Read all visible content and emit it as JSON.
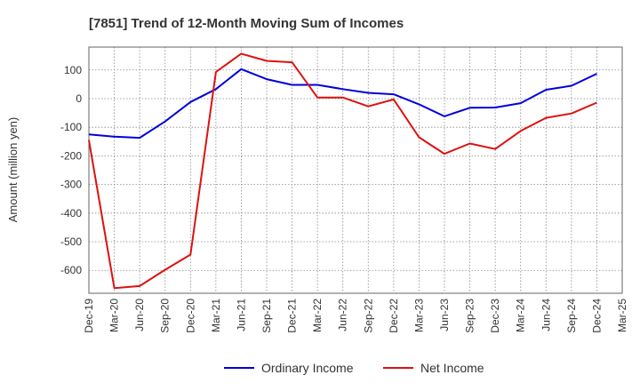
{
  "chart_data": {
    "type": "line",
    "title": "[7851]  Trend of 12-Month Moving Sum of Incomes",
    "xlabel": "",
    "ylabel": "Amount (million yen)",
    "ylim": [
      -680,
      180
    ],
    "yticks": [
      100,
      0,
      -100,
      -200,
      -300,
      -400,
      -500,
      -600
    ],
    "grid": true,
    "legend_position": "bottom",
    "categories": [
      "Dec-19",
      "Mar-20",
      "Jun-20",
      "Sep-20",
      "Dec-20",
      "Mar-21",
      "Jun-21",
      "Sep-21",
      "Dec-21",
      "Mar-22",
      "Jun-22",
      "Sep-22",
      "Dec-22",
      "Mar-23",
      "Jun-23",
      "Sep-23",
      "Dec-23",
      "Mar-24",
      "Jun-24",
      "Sep-24",
      "Dec-24",
      "Mar-25"
    ],
    "series": [
      {
        "name": "Ordinary Income",
        "color": "#0000dd",
        "values": [
          -125,
          -133,
          -137,
          -80,
          -12,
          33,
          103,
          68,
          48,
          48,
          33,
          20,
          15,
          -20,
          -62,
          -32,
          -31,
          -16,
          31,
          45,
          87,
          null
        ]
      },
      {
        "name": "Net Income",
        "color": "#dd1111",
        "values": [
          -145,
          -662,
          -655,
          -598,
          -545,
          93,
          157,
          132,
          127,
          4,
          4,
          -27,
          -3,
          -135,
          -193,
          -157,
          -176,
          -113,
          -67,
          -52,
          -14,
          null
        ]
      }
    ]
  }
}
